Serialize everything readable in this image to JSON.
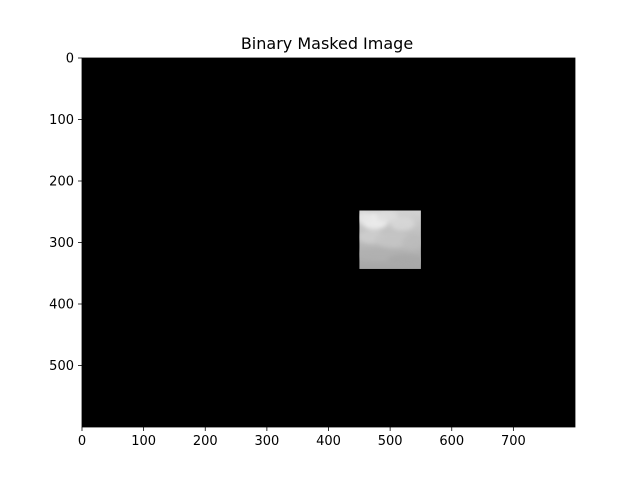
{
  "chart_data": {
    "type": "heatmap",
    "title": "Binary Masked Image",
    "xlabel": "",
    "ylabel": "",
    "xlim": [
      0,
      800
    ],
    "ylim": [
      600,
      0
    ],
    "x_ticks": [
      0,
      100,
      200,
      300,
      400,
      500,
      600,
      700
    ],
    "y_ticks": [
      0,
      100,
      200,
      300,
      400,
      500
    ],
    "x_tick_labels": [
      "0",
      "100",
      "200",
      "300",
      "400",
      "500",
      "600",
      "700"
    ],
    "y_tick_labels": [
      "0",
      "100",
      "200",
      "300",
      "400",
      "500"
    ],
    "background_value": 0,
    "background_color": "#000000",
    "visible_region": {
      "x_range": [
        450,
        550
      ],
      "y_range": [
        248,
        343
      ],
      "content": "grayscale sky with clouds"
    },
    "grid": false,
    "colormap": "gray"
  }
}
